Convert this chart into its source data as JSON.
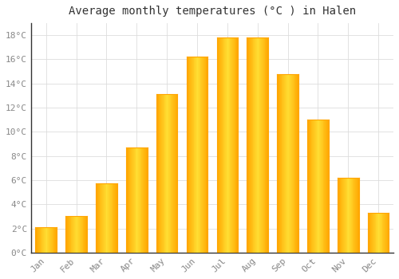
{
  "title": "Average monthly temperatures (°C ) in Halen",
  "months": [
    "Jan",
    "Feb",
    "Mar",
    "Apr",
    "May",
    "Jun",
    "Jul",
    "Aug",
    "Sep",
    "Oct",
    "Nov",
    "Dec"
  ],
  "values": [
    2.1,
    3.0,
    5.7,
    8.7,
    13.1,
    16.2,
    17.8,
    17.8,
    14.8,
    11.0,
    6.2,
    3.3
  ],
  "bar_color_center": "#FFD700",
  "bar_color_edge": "#FFA500",
  "background_color": "#FFFFFF",
  "grid_color": "#DDDDDD",
  "text_color": "#888888",
  "title_color": "#333333",
  "ylim": [
    0,
    19
  ],
  "yticks": [
    0,
    2,
    4,
    6,
    8,
    10,
    12,
    14,
    16,
    18
  ],
  "title_fontsize": 10,
  "tick_fontsize": 8,
  "font_family": "monospace"
}
